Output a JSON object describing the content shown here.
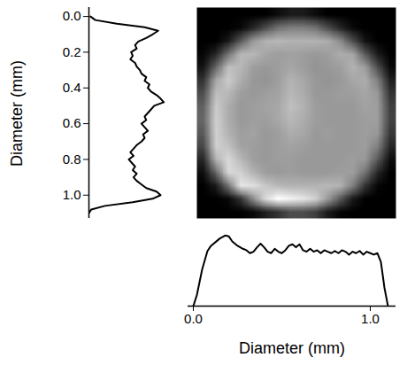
{
  "chart_data": [
    {
      "type": "line",
      "ylabel": "Diameter (mm)",
      "y": [
        0.0,
        0.02,
        0.04,
        0.06,
        0.08,
        0.1,
        0.12,
        0.14,
        0.16,
        0.18,
        0.2,
        0.22,
        0.24,
        0.26,
        0.28,
        0.3,
        0.32,
        0.34,
        0.36,
        0.38,
        0.4,
        0.42,
        0.44,
        0.46,
        0.48,
        0.5,
        0.52,
        0.54,
        0.56,
        0.58,
        0.6,
        0.62,
        0.64,
        0.66,
        0.68,
        0.7,
        0.72,
        0.74,
        0.76,
        0.78,
        0.8,
        0.82,
        0.84,
        0.86,
        0.88,
        0.9,
        0.92,
        0.94,
        0.96,
        0.98,
        1.0,
        1.02,
        1.04,
        1.06,
        1.08,
        1.1
      ],
      "values": [
        0.02,
        0.08,
        0.35,
        0.7,
        0.87,
        0.8,
        0.72,
        0.62,
        0.58,
        0.6,
        0.53,
        0.55,
        0.52,
        0.58,
        0.6,
        0.64,
        0.66,
        0.72,
        0.7,
        0.76,
        0.74,
        0.78,
        0.85,
        0.9,
        0.94,
        0.82,
        0.78,
        0.74,
        0.7,
        0.72,
        0.66,
        0.7,
        0.74,
        0.68,
        0.7,
        0.66,
        0.6,
        0.56,
        0.52,
        0.56,
        0.5,
        0.54,
        0.58,
        0.55,
        0.6,
        0.56,
        0.6,
        0.66,
        0.72,
        0.85,
        0.9,
        0.8,
        0.55,
        0.2,
        0.03,
        0.0
      ],
      "color": "#000000",
      "xlim": [
        0,
        1
      ],
      "ylim": [
        -0.05,
        1.13
      ],
      "yticks": [
        {
          "value": 0,
          "label": "0.0"
        },
        0.2,
        0.4,
        0.6,
        0.8,
        {
          "value": 1,
          "label": "1.0"
        }
      ],
      "tick_labels": "y"
    },
    {
      "type": "heatmap",
      "cells": [
        [
          0,
          0,
          0,
          0,
          0,
          0,
          0.05,
          0.1,
          0.1,
          0.05,
          0,
          0,
          0,
          0,
          0,
          0
        ],
        [
          0,
          0,
          0,
          0.03,
          0.15,
          0.3,
          0.45,
          0.5,
          0.5,
          0.45,
          0.3,
          0.15,
          0.03,
          0,
          0,
          0
        ],
        [
          0,
          0,
          0.1,
          0.35,
          0.6,
          0.7,
          0.72,
          0.7,
          0.7,
          0.7,
          0.68,
          0.55,
          0.3,
          0.08,
          0,
          0
        ],
        [
          0.02,
          0.15,
          0.45,
          0.72,
          0.72,
          0.65,
          0.62,
          0.63,
          0.62,
          0.6,
          0.62,
          0.68,
          0.65,
          0.35,
          0.1,
          0
        ],
        [
          0.08,
          0.4,
          0.75,
          0.72,
          0.62,
          0.6,
          0.62,
          0.65,
          0.62,
          0.58,
          0.6,
          0.62,
          0.7,
          0.62,
          0.3,
          0.03
        ],
        [
          0.2,
          0.65,
          0.8,
          0.68,
          0.6,
          0.58,
          0.62,
          0.7,
          0.66,
          0.6,
          0.58,
          0.6,
          0.65,
          0.68,
          0.5,
          0.12
        ],
        [
          0.3,
          0.75,
          0.72,
          0.62,
          0.6,
          0.62,
          0.64,
          0.72,
          0.68,
          0.6,
          0.6,
          0.62,
          0.62,
          0.65,
          0.6,
          0.2
        ],
        [
          0.38,
          0.8,
          0.68,
          0.6,
          0.62,
          0.64,
          0.66,
          0.75,
          0.7,
          0.62,
          0.6,
          0.6,
          0.6,
          0.64,
          0.62,
          0.25
        ],
        [
          0.4,
          0.82,
          0.68,
          0.6,
          0.62,
          0.62,
          0.66,
          0.72,
          0.68,
          0.62,
          0.6,
          0.6,
          0.6,
          0.62,
          0.62,
          0.26
        ],
        [
          0.35,
          0.82,
          0.7,
          0.62,
          0.64,
          0.6,
          0.62,
          0.68,
          0.66,
          0.6,
          0.62,
          0.6,
          0.6,
          0.62,
          0.6,
          0.22
        ],
        [
          0.28,
          0.82,
          0.76,
          0.64,
          0.62,
          0.6,
          0.62,
          0.64,
          0.62,
          0.6,
          0.6,
          0.6,
          0.6,
          0.62,
          0.5,
          0.15
        ],
        [
          0.15,
          0.7,
          0.85,
          0.72,
          0.62,
          0.6,
          0.62,
          0.62,
          0.6,
          0.6,
          0.6,
          0.6,
          0.62,
          0.6,
          0.35,
          0.05
        ],
        [
          0.05,
          0.4,
          0.85,
          0.82,
          0.7,
          0.62,
          0.6,
          0.62,
          0.6,
          0.6,
          0.6,
          0.62,
          0.62,
          0.45,
          0.15,
          0
        ],
        [
          0,
          0.1,
          0.45,
          0.9,
          0.88,
          0.78,
          0.72,
          0.7,
          0.7,
          0.7,
          0.72,
          0.7,
          0.5,
          0.2,
          0.02,
          0
        ],
        [
          0,
          0,
          0.03,
          0.2,
          0.55,
          0.85,
          1.0,
          0.95,
          0.9,
          0.82,
          0.6,
          0.35,
          0.1,
          0,
          0,
          0
        ],
        [
          0,
          0,
          0,
          0,
          0.03,
          0.12,
          0.2,
          0.3,
          0.3,
          0.25,
          0.1,
          0.02,
          0,
          0,
          0,
          0
        ]
      ],
      "xlim": [
        0.02,
        1.145
      ],
      "ylim": [
        -0.05,
        1.13
      ],
      "tick_labels": false
    },
    {
      "type": "line",
      "xlabel": "Diameter (mm)",
      "x": [
        0.0,
        0.02,
        0.05,
        0.08,
        0.1,
        0.15,
        0.18,
        0.2,
        0.22,
        0.25,
        0.28,
        0.3,
        0.32,
        0.34,
        0.36,
        0.38,
        0.4,
        0.42,
        0.44,
        0.46,
        0.48,
        0.5,
        0.52,
        0.54,
        0.56,
        0.58,
        0.6,
        0.62,
        0.64,
        0.66,
        0.68,
        0.7,
        0.72,
        0.74,
        0.76,
        0.78,
        0.8,
        0.82,
        0.84,
        0.86,
        0.88,
        0.9,
        0.92,
        0.94,
        0.96,
        0.98,
        1.0,
        1.02,
        1.04,
        1.06,
        1.08,
        1.1
      ],
      "values": [
        0.0,
        0.15,
        0.5,
        0.75,
        0.82,
        0.92,
        0.96,
        0.95,
        0.88,
        0.82,
        0.78,
        0.76,
        0.72,
        0.74,
        0.8,
        0.85,
        0.8,
        0.74,
        0.72,
        0.78,
        0.74,
        0.72,
        0.76,
        0.82,
        0.84,
        0.8,
        0.84,
        0.76,
        0.74,
        0.78,
        0.74,
        0.76,
        0.72,
        0.76,
        0.74,
        0.72,
        0.75,
        0.72,
        0.76,
        0.74,
        0.7,
        0.74,
        0.72,
        0.75,
        0.7,
        0.74,
        0.72,
        0.7,
        0.72,
        0.6,
        0.25,
        0.0
      ],
      "color": "#000000",
      "xlim": [
        -0.03,
        1.145
      ],
      "ylim": [
        0,
        1
      ],
      "xticks": [
        {
          "value": 0,
          "label": "0.0"
        },
        {
          "value": 1,
          "label": "1.0"
        }
      ],
      "tick_labels": "x"
    }
  ]
}
